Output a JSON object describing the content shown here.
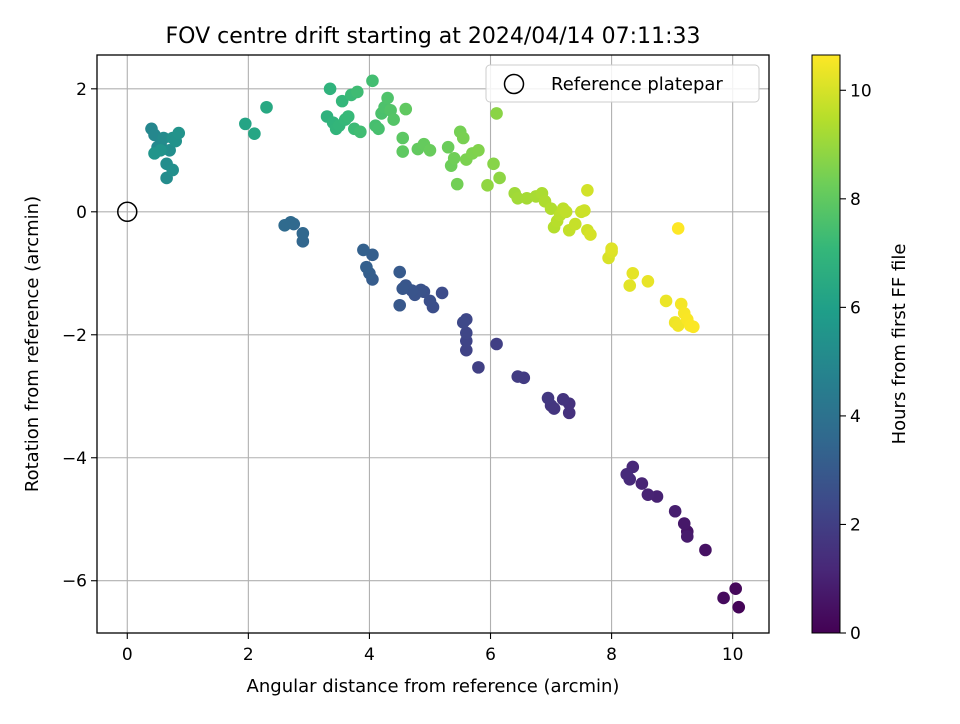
{
  "chart_data": {
    "type": "scatter",
    "title": "FOV centre drift starting at 2024/04/14 07:11:33",
    "xlabel": "Angular distance from reference (arcmin)",
    "ylabel": "Rotation from reference (arcmin)",
    "xlim": [
      -0.5,
      10.6
    ],
    "ylim": [
      -6.85,
      2.55
    ],
    "xticks": [
      0,
      2,
      4,
      6,
      8,
      10
    ],
    "xtick_labels": [
      "0",
      "2",
      "4",
      "6",
      "8",
      "10"
    ],
    "yticks": [
      2,
      0,
      -2,
      -4,
      -6
    ],
    "ytick_labels": [
      "2",
      "0",
      "−2",
      "−4",
      "−6"
    ],
    "grid": true,
    "legend": {
      "position": "top-right",
      "entries": [
        "Reference platepar"
      ]
    },
    "reference_point": {
      "x": 0,
      "y": 0
    },
    "colorbar": {
      "label": "Hours from first FF file",
      "colormap": "viridis",
      "range": [
        0,
        10.65
      ],
      "ticks": [
        0,
        2,
        4,
        6,
        8,
        10
      ],
      "tick_labels": [
        "0",
        "2",
        "4",
        "6",
        "8",
        "10"
      ],
      "stops": [
        "#440154",
        "#482878",
        "#3e4989",
        "#31688e",
        "#26828e",
        "#1f9e89",
        "#35b779",
        "#6ece58",
        "#b5de2b",
        "#fde725"
      ]
    },
    "points": [
      [
        10.1,
        -6.43,
        0.1
      ],
      [
        10.05,
        -6.13,
        0.2
      ],
      [
        9.85,
        -6.28,
        0.3
      ],
      [
        9.55,
        -5.5,
        0.5
      ],
      [
        9.25,
        -5.2,
        0.6
      ],
      [
        9.2,
        -5.07,
        0.7
      ],
      [
        9.25,
        -5.28,
        0.8
      ],
      [
        9.05,
        -4.87,
        0.9
      ],
      [
        8.75,
        -4.63,
        1.0
      ],
      [
        8.6,
        -4.6,
        1.05
      ],
      [
        8.5,
        -4.42,
        1.1
      ],
      [
        8.35,
        -4.15,
        1.2
      ],
      [
        8.3,
        -4.35,
        1.25
      ],
      [
        8.25,
        -4.27,
        1.3
      ],
      [
        7.3,
        -3.27,
        1.5
      ],
      [
        7.3,
        -3.12,
        1.55
      ],
      [
        7.2,
        -3.05,
        1.6
      ],
      [
        7.05,
        -3.2,
        1.65
      ],
      [
        7.0,
        -3.15,
        1.7
      ],
      [
        6.95,
        -3.03,
        1.75
      ],
      [
        6.55,
        -2.7,
        1.85
      ],
      [
        6.45,
        -2.68,
        1.9
      ],
      [
        6.1,
        -2.15,
        2.0
      ],
      [
        5.8,
        -2.53,
        2.05
      ],
      [
        5.6,
        -2.25,
        2.15
      ],
      [
        5.6,
        -2.1,
        2.2
      ],
      [
        5.6,
        -1.97,
        2.25
      ],
      [
        5.6,
        -1.75,
        2.3
      ],
      [
        5.55,
        -1.8,
        2.35
      ],
      [
        5.2,
        -1.32,
        2.5
      ],
      [
        5.05,
        -1.55,
        2.55
      ],
      [
        5.0,
        -1.45,
        2.6
      ],
      [
        4.9,
        -1.3,
        2.65
      ],
      [
        4.85,
        -1.27,
        2.7
      ],
      [
        4.75,
        -1.35,
        2.75
      ],
      [
        4.7,
        -1.28,
        2.8
      ],
      [
        4.6,
        -1.2,
        2.85
      ],
      [
        4.55,
        -1.25,
        2.9
      ],
      [
        4.5,
        -1.52,
        2.95
      ],
      [
        4.5,
        -0.98,
        3.0
      ],
      [
        4.05,
        -1.1,
        3.1
      ],
      [
        4.0,
        -1.0,
        3.15
      ],
      [
        4.05,
        -0.7,
        3.2
      ],
      [
        3.95,
        -0.9,
        3.25
      ],
      [
        3.9,
        -0.62,
        3.3
      ],
      [
        2.9,
        -0.48,
        3.5
      ],
      [
        2.9,
        -0.35,
        3.55
      ],
      [
        2.75,
        -0.2,
        3.6
      ],
      [
        2.7,
        -0.17,
        3.65
      ],
      [
        2.6,
        -0.22,
        3.7
      ],
      [
        0.4,
        1.35,
        4.9
      ],
      [
        0.45,
        1.25,
        4.95
      ],
      [
        0.5,
        1.05,
        5.0
      ],
      [
        0.55,
        1.1,
        5.05
      ],
      [
        0.6,
        1.2,
        5.1
      ],
      [
        0.65,
        0.55,
        5.15
      ],
      [
        0.65,
        0.78,
        5.2
      ],
      [
        0.7,
        1.0,
        5.25
      ],
      [
        0.75,
        0.68,
        5.3
      ],
      [
        0.75,
        1.2,
        5.35
      ],
      [
        0.8,
        1.15,
        5.4
      ],
      [
        0.85,
        1.28,
        5.45
      ],
      [
        0.55,
        1.0,
        5.5
      ],
      [
        0.45,
        0.95,
        5.55
      ],
      [
        1.95,
        1.43,
        6.2
      ],
      [
        2.1,
        1.27,
        6.3
      ],
      [
        2.3,
        1.7,
        6.4
      ],
      [
        3.3,
        1.55,
        6.8
      ],
      [
        3.35,
        2.0,
        6.85
      ],
      [
        3.4,
        1.45,
        6.9
      ],
      [
        3.45,
        1.35,
        6.95
      ],
      [
        3.5,
        1.4,
        7.0
      ],
      [
        3.55,
        1.8,
        7.05
      ],
      [
        3.6,
        1.5,
        7.1
      ],
      [
        3.65,
        1.55,
        7.15
      ],
      [
        3.7,
        1.9,
        7.2
      ],
      [
        3.75,
        1.35,
        7.25
      ],
      [
        3.8,
        1.95,
        7.3
      ],
      [
        3.85,
        1.3,
        7.35
      ],
      [
        4.05,
        2.13,
        7.4
      ],
      [
        4.1,
        1.4,
        7.45
      ],
      [
        4.15,
        1.35,
        7.5
      ],
      [
        4.2,
        1.6,
        7.55
      ],
      [
        4.25,
        1.7,
        7.6
      ],
      [
        4.3,
        1.85,
        7.65
      ],
      [
        4.35,
        1.65,
        7.7
      ],
      [
        4.4,
        1.5,
        7.75
      ],
      [
        4.55,
        1.2,
        7.9
      ],
      [
        4.55,
        0.98,
        7.95
      ],
      [
        4.6,
        1.67,
        8.0
      ],
      [
        4.8,
        1.02,
        8.05
      ],
      [
        4.9,
        1.1,
        8.1
      ],
      [
        5.0,
        1.0,
        8.15
      ],
      [
        5.3,
        1.05,
        8.2
      ],
      [
        5.35,
        0.75,
        8.25
      ],
      [
        5.4,
        0.87,
        8.3
      ],
      [
        5.45,
        0.45,
        8.35
      ],
      [
        5.5,
        1.3,
        8.4
      ],
      [
        5.55,
        1.2,
        8.45
      ],
      [
        5.6,
        0.85,
        8.5
      ],
      [
        5.7,
        0.95,
        8.55
      ],
      [
        5.8,
        1.0,
        8.6
      ],
      [
        6.05,
        0.78,
        8.7
      ],
      [
        6.1,
        1.6,
        8.75
      ],
      [
        6.15,
        0.55,
        8.8
      ],
      [
        5.95,
        0.43,
        8.85
      ],
      [
        6.4,
        0.3,
        9.1
      ],
      [
        6.45,
        0.22,
        9.15
      ],
      [
        6.6,
        0.22,
        9.2
      ],
      [
        6.75,
        0.25,
        9.25
      ],
      [
        6.85,
        0.3,
        9.3
      ],
      [
        6.9,
        0.17,
        9.35
      ],
      [
        7.0,
        0.05,
        9.4
      ],
      [
        7.05,
        -0.25,
        9.45
      ],
      [
        7.1,
        -0.15,
        9.5
      ],
      [
        7.15,
        -0.05,
        9.55
      ],
      [
        7.2,
        0.05,
        9.6
      ],
      [
        7.25,
        0.0,
        9.65
      ],
      [
        7.3,
        -0.3,
        9.7
      ],
      [
        7.4,
        -0.2,
        9.75
      ],
      [
        7.5,
        0.0,
        9.8
      ],
      [
        7.55,
        0.02,
        9.85
      ],
      [
        7.6,
        -0.3,
        9.9
      ],
      [
        7.6,
        0.35,
        9.95
      ],
      [
        7.65,
        -0.37,
        10.0
      ],
      [
        7.95,
        -0.75,
        10.05
      ],
      [
        8.0,
        -0.65,
        10.1
      ],
      [
        8.0,
        -0.6,
        10.15
      ],
      [
        8.3,
        -1.2,
        10.2
      ],
      [
        8.35,
        -1.0,
        10.25
      ],
      [
        8.6,
        -1.13,
        10.3
      ],
      [
        8.9,
        -1.45,
        10.35
      ],
      [
        9.05,
        -1.8,
        10.4
      ],
      [
        9.1,
        -1.85,
        10.45
      ],
      [
        9.15,
        -1.5,
        10.5
      ],
      [
        9.2,
        -1.65,
        10.55
      ],
      [
        9.25,
        -1.75,
        10.58
      ],
      [
        9.3,
        -1.85,
        10.6
      ],
      [
        9.35,
        -1.87,
        10.62
      ],
      [
        9.1,
        -0.27,
        10.65
      ]
    ]
  }
}
